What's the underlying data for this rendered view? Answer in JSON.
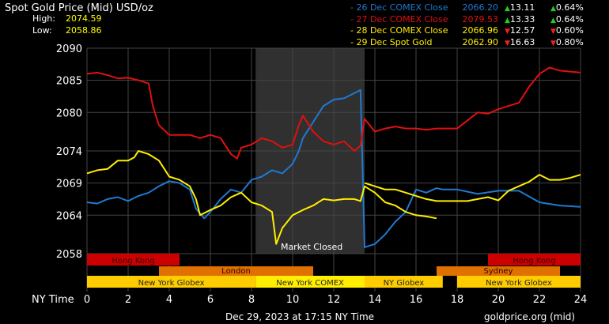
{
  "header": {
    "title": "Spot Gold Price (Mid) USD/oz",
    "high_label": "High:",
    "high_value": "2074.59",
    "low_label": "Low:",
    "low_value": "2058.86"
  },
  "legend": [
    {
      "label": "26 Dec COMEX Close",
      "price": "2066.20",
      "chg": "13.11",
      "pct": "0.64%",
      "dir": "up",
      "color": "#1f7ad1"
    },
    {
      "label": "27 Dec COMEX Close",
      "price": "2079.53",
      "chg": "13.33",
      "pct": "0.64%",
      "dir": "up",
      "color": "#e01010"
    },
    {
      "label": "28 Dec COMEX Close",
      "price": "2066.96",
      "chg": "12.57",
      "pct": "0.60%",
      "dir": "down",
      "color": "#ffee00"
    },
    {
      "label": "29 Dec Spot Gold",
      "price": "2062.90",
      "chg": "16.63",
      "pct": "0.80%",
      "dir": "down",
      "color": "#ffee00"
    }
  ],
  "market_closed_label": "Market Closed",
  "x_axis_label": "NY Time",
  "footer": {
    "date": "Dec 29, 2023 at 17:15 NY Time",
    "source": "goldprice.org (mid)"
  },
  "sessions": [
    {
      "name": "Hong Kong",
      "start": 0,
      "end": 4.5,
      "row": 0,
      "color": "#cc0000"
    },
    {
      "name": "Hong Kong",
      "start": 19.5,
      "end": 24,
      "row": 0,
      "color": "#cc0000"
    },
    {
      "name": "London",
      "start": 3.5,
      "end": 11,
      "row": 1,
      "color": "#e07000"
    },
    {
      "name": "Sydney",
      "start": 17,
      "end": 23,
      "row": 1,
      "color": "#e07000"
    },
    {
      "name": "New York Globex",
      "start": 0,
      "end": 8.2,
      "row": 2,
      "color": "#ffcc00"
    },
    {
      "name": "New York COMEX",
      "start": 8.2,
      "end": 13.5,
      "row": 2,
      "color": "#ffee00"
    },
    {
      "name": "NY Globex",
      "start": 13.5,
      "end": 17.3,
      "row": 2,
      "color": "#ffcc00"
    },
    {
      "name": "New York Globex",
      "start": 18,
      "end": 24,
      "row": 2,
      "color": "#ffcc00"
    }
  ],
  "chart_data": {
    "type": "line",
    "title": "Spot Gold Price (Mid) USD/oz",
    "xlabel": "NY Time",
    "ylabel": "",
    "xlim": [
      0,
      24
    ],
    "ylim": [
      2058,
      2090
    ],
    "x_ticks": [
      "0",
      "2",
      "4",
      "6",
      "8",
      "10",
      "12",
      "14",
      "16",
      "18",
      "20",
      "22",
      "24"
    ],
    "y_ticks": [
      "2058",
      "2064",
      "2069",
      "2074",
      "2080",
      "2085",
      "2090"
    ],
    "grid": true,
    "shaded_region": [
      8.2,
      13.5
    ],
    "series": [
      {
        "name": "26 Dec COMEX Close",
        "color": "#1f7ad1",
        "x": [
          0,
          0.5,
          1,
          1.5,
          2,
          2.5,
          3,
          3.5,
          4,
          4.5,
          5,
          5.3,
          5.7,
          6,
          6.5,
          7,
          7.5,
          8,
          8.5,
          9,
          9.5,
          10,
          10.3,
          10.5,
          11,
          11.5,
          12,
          12.5,
          13,
          13.3,
          13.5,
          14,
          14.5,
          15,
          15.5,
          16,
          16.5,
          17,
          17.3,
          17.5,
          18,
          19,
          20,
          21,
          22,
          23,
          24
        ],
        "y": [
          2066,
          2065.8,
          2066.5,
          2066.8,
          2066.2,
          2067,
          2067.5,
          2068.5,
          2069.3,
          2069,
          2068,
          2065,
          2063.5,
          2064.5,
          2066.5,
          2068,
          2067.5,
          2069.5,
          2070,
          2071,
          2070.5,
          2072,
          2074,
          2076,
          2078.5,
          2081,
          2082,
          2082.2,
          2083,
          2083.5,
          2059,
          2059.5,
          2061,
          2063,
          2064.5,
          2068,
          2067.5,
          2068.2,
          2068,
          2068,
          2068,
          2067.3,
          2067.8,
          2067.8,
          2066,
          2065.5,
          2065.3
        ]
      },
      {
        "name": "27 Dec COMEX Close",
        "color": "#e01010",
        "x": [
          0,
          0.5,
          1,
          1.5,
          2,
          2.5,
          3,
          3.2,
          3.5,
          4,
          4.5,
          5,
          5.5,
          6,
          6.5,
          7,
          7.3,
          7.5,
          8,
          8.5,
          9,
          9.5,
          10,
          10.3,
          10.5,
          11,
          11.5,
          12,
          12.5,
          13,
          13.3,
          13.5,
          14,
          14.5,
          15,
          15.5,
          16,
          16.5,
          17,
          18,
          19,
          19.5,
          20,
          20.5,
          21,
          21.5,
          22,
          22.5,
          23,
          24
        ],
        "y": [
          2086,
          2086.2,
          2085.8,
          2085.3,
          2085.4,
          2085,
          2084.5,
          2081,
          2078,
          2076.5,
          2076.5,
          2076.5,
          2076,
          2076.5,
          2076,
          2073.5,
          2072.8,
          2074.5,
          2075,
          2076,
          2075.5,
          2074.5,
          2075,
          2078,
          2079.5,
          2077,
          2075.5,
          2075,
          2075.5,
          2074,
          2074.8,
          2079,
          2077,
          2077.5,
          2077.8,
          2077.5,
          2077.5,
          2077.3,
          2077.5,
          2077.5,
          2080,
          2079.8,
          2080.5,
          2081,
          2081.5,
          2084,
          2086,
          2087,
          2086.5,
          2086.2
        ]
      },
      {
        "name": "28 Dec COMEX Close",
        "color": "#ffee00",
        "x": [
          0,
          0.5,
          1,
          1.5,
          2,
          2.3,
          2.5,
          3,
          3.5,
          4,
          4.5,
          5,
          5.3,
          5.5,
          6,
          6.5,
          7,
          7.5,
          8,
          8.5,
          9,
          9.2,
          9.5,
          10,
          10.5,
          11,
          11.5,
          12,
          12.5,
          13,
          13.3,
          13.5,
          14,
          14.5,
          15,
          15.5,
          16,
          16.5,
          17
        ],
        "y": [
          2070.5,
          2071,
          2071.2,
          2072.5,
          2072.5,
          2073,
          2074,
          2073.5,
          2072.5,
          2070,
          2069.5,
          2068.5,
          2066.5,
          2064,
          2064.8,
          2065.5,
          2066.8,
          2067.5,
          2066,
          2065.5,
          2064.5,
          2059.5,
          2062,
          2064,
          2064.8,
          2065.5,
          2066.5,
          2066.3,
          2066.5,
          2066.5,
          2066.2,
          2068.5,
          2067.5,
          2066,
          2065.5,
          2064.5,
          2064,
          2063.8,
          2063.5
        ]
      },
      {
        "name": "29 Dec Spot Gold",
        "color": "#ffee00",
        "x": [
          13.5,
          14,
          14.5,
          15,
          15.5,
          16,
          16.5,
          17,
          17.5,
          18,
          18.5,
          19,
          19.5,
          20,
          20.5,
          21,
          21.5,
          22,
          22.5,
          23,
          23.5,
          24
        ],
        "y": [
          2069,
          2068.5,
          2068,
          2068,
          2067.5,
          2067,
          2066.5,
          2066.2,
          2066.2,
          2066.2,
          2066.2,
          2066.5,
          2066.8,
          2066.3,
          2067.8,
          2068.5,
          2069.2,
          2070.3,
          2069.5,
          2069.5,
          2069.8,
          2070.3
        ]
      }
    ]
  }
}
